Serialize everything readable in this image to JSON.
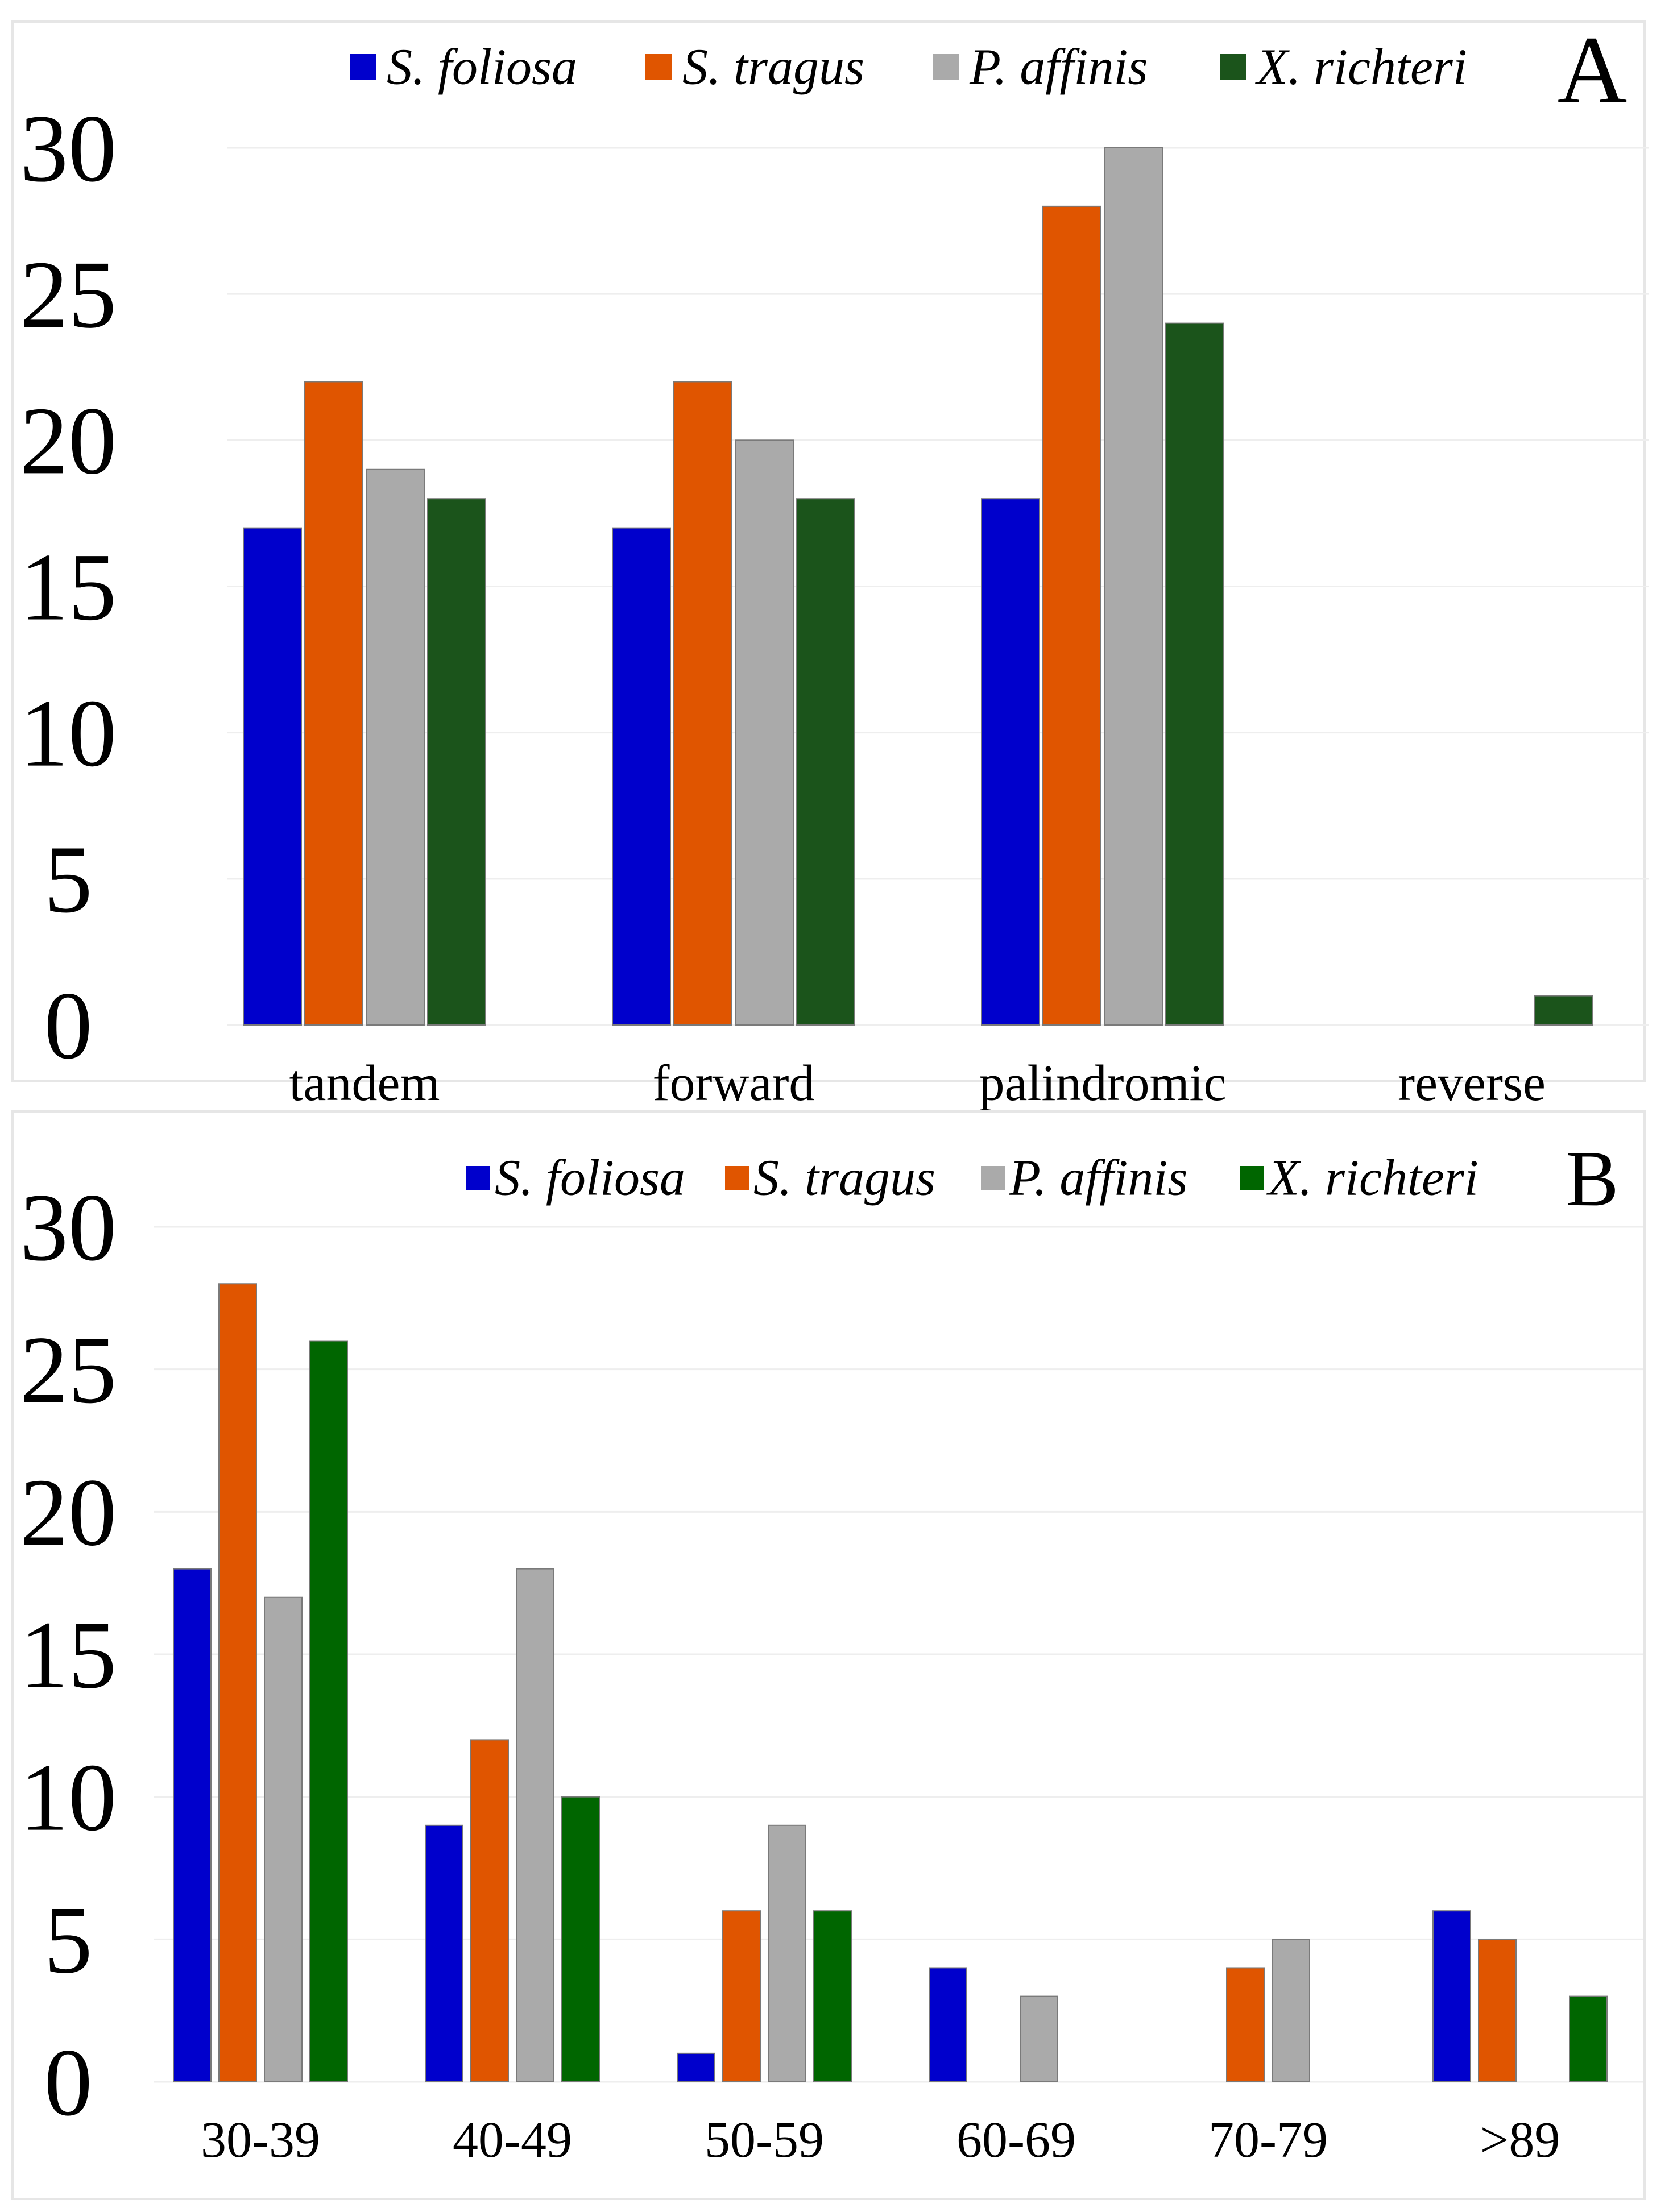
{
  "chart_data": [
    {
      "panel_label": "A",
      "type": "bar",
      "categories": [
        "tandem",
        "forward",
        "palindromic",
        "reverse"
      ],
      "series": [
        {
          "name": "S. foliosa",
          "color": "#0000cc",
          "values": [
            17,
            17,
            18,
            0
          ]
        },
        {
          "name": "S. tragus",
          "color": "#e05500",
          "values": [
            22,
            22,
            28,
            0
          ]
        },
        {
          "name": "P. affinis",
          "color": "#aaaaaa",
          "values": [
            19,
            20,
            30,
            0
          ]
        },
        {
          "name": "X. richteri",
          "color": "#1b541b",
          "values": [
            18,
            18,
            24,
            1
          ]
        }
      ],
      "yticks": [
        "0",
        "5",
        "10",
        "15",
        "20",
        "25",
        "30"
      ],
      "ylim": [
        0,
        30
      ],
      "grid": true,
      "legend_position": "top-right"
    },
    {
      "panel_label": "B",
      "type": "bar",
      "categories": [
        "30-39",
        "40-49",
        "50-59",
        "60-69",
        "70-79",
        ">89"
      ],
      "series": [
        {
          "name": "S. foliosa",
          "color": "#0000cc",
          "values": [
            18,
            9,
            1,
            4,
            0,
            6
          ]
        },
        {
          "name": "S. tragus",
          "color": "#e05500",
          "values": [
            28,
            12,
            6,
            0,
            4,
            5
          ]
        },
        {
          "name": "P. affinis",
          "color": "#aaaaaa",
          "values": [
            17,
            18,
            9,
            3,
            5,
            0
          ]
        },
        {
          "name": "X. richteri",
          "color": "#006600",
          "values": [
            26,
            10,
            6,
            0,
            0,
            3
          ]
        }
      ],
      "yticks": [
        "0",
        "5",
        "10",
        "15",
        "20",
        "25",
        "30"
      ],
      "ylim": [
        0,
        30
      ],
      "grid": true,
      "legend_position": "top-right"
    }
  ]
}
